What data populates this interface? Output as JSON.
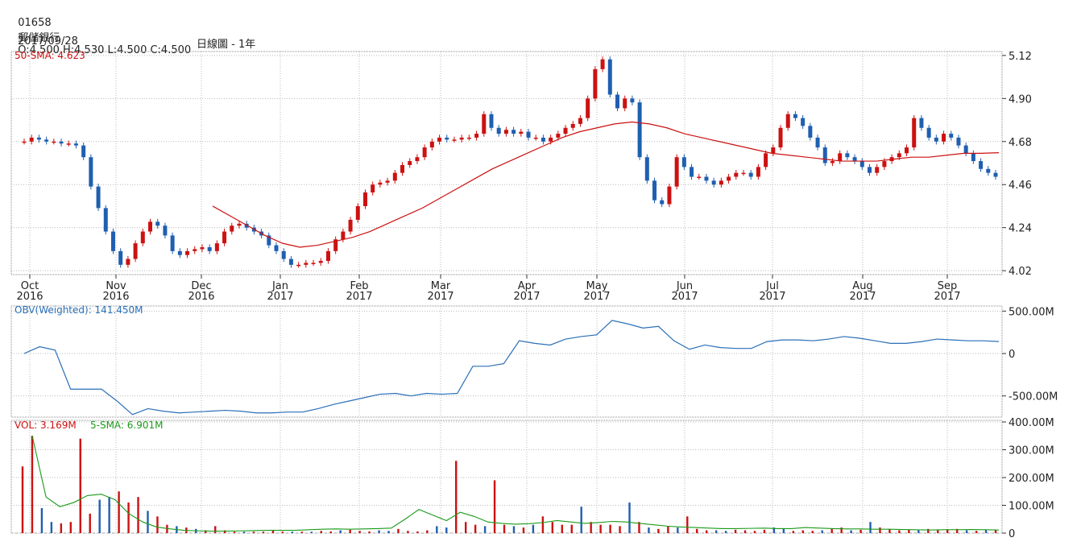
{
  "header": {
    "code": "01658",
    "name": "郵儲銀行",
    "quote": "O:4.500 H:4.530 L:4.500 C:4.500",
    "date": "2017/09/28",
    "period": "日線圖 - 1年"
  },
  "colors": {
    "up": "#cc1111",
    "down": "#1f5fb0",
    "obv": "#2a6fb8",
    "sma_vol": "#1a9a1a",
    "grid": "#bbbbbb"
  },
  "chart_data": [
    {
      "type": "candlestick",
      "label": "50-SMA: 4.623",
      "x_ticks": [
        {
          "m": "Oct",
          "y": "2016"
        },
        {
          "m": "Nov",
          "y": "2016"
        },
        {
          "m": "Dec",
          "y": "2016"
        },
        {
          "m": "Jan",
          "y": "2017"
        },
        {
          "m": "Feb",
          "y": "2017"
        },
        {
          "m": "Mar",
          "y": "2017"
        },
        {
          "m": "Apr",
          "y": "2017"
        },
        {
          "m": "May",
          "y": "2017"
        },
        {
          "m": "Jun",
          "y": "2017"
        },
        {
          "m": "Jul",
          "y": "2017"
        },
        {
          "m": "Aug",
          "y": "2017"
        },
        {
          "m": "Sep",
          "y": "2017"
        }
      ],
      "y_ticks": [
        "5.12",
        "4.90",
        "4.68",
        "4.46",
        "4.24",
        "4.02"
      ],
      "ylim": [
        4.0,
        5.14
      ],
      "close": [
        4.68,
        4.7,
        4.69,
        4.68,
        4.68,
        4.67,
        4.67,
        4.66,
        4.6,
        4.45,
        4.34,
        4.22,
        4.12,
        4.05,
        4.08,
        4.16,
        4.22,
        4.27,
        4.25,
        4.2,
        4.12,
        4.1,
        4.12,
        4.13,
        4.14,
        4.12,
        4.16,
        4.22,
        4.25,
        4.26,
        4.24,
        4.22,
        4.2,
        4.15,
        4.12,
        4.08,
        4.05,
        4.05,
        4.06,
        4.06,
        4.07,
        4.12,
        4.18,
        4.22,
        4.28,
        4.35,
        4.42,
        4.46,
        4.47,
        4.48,
        4.52,
        4.56,
        4.58,
        4.6,
        4.65,
        4.68,
        4.7,
        4.69,
        4.69,
        4.7,
        4.7,
        4.72,
        4.82,
        4.75,
        4.72,
        4.74,
        4.72,
        4.73,
        4.7,
        4.7,
        4.68,
        4.7,
        4.72,
        4.75,
        4.77,
        4.8,
        4.9,
        5.05,
        5.1,
        4.92,
        4.85,
        4.9,
        4.88,
        4.6,
        4.48,
        4.38,
        4.36,
        4.45,
        4.6,
        4.55,
        4.5,
        4.5,
        4.48,
        4.46,
        4.48,
        4.5,
        4.52,
        4.52,
        4.5,
        4.55,
        4.62,
        4.65,
        4.75,
        4.82,
        4.8,
        4.76,
        4.7,
        4.65,
        4.57,
        4.58,
        4.62,
        4.6,
        4.58,
        4.55,
        4.52,
        4.55,
        4.58,
        4.6,
        4.62,
        4.65,
        4.8,
        4.75,
        4.7,
        4.68,
        4.72,
        4.7,
        4.66,
        4.62,
        4.58,
        4.54,
        4.52,
        4.5
      ],
      "sma50": {
        "start": 50,
        "values": [
          4.35,
          4.3,
          4.25,
          4.2,
          4.16,
          4.14,
          4.15,
          4.17,
          4.19,
          4.22,
          4.26,
          4.3,
          4.34,
          4.39,
          4.44,
          4.49,
          4.54,
          4.58,
          4.62,
          4.66,
          4.7,
          4.73,
          4.75,
          4.77,
          4.78,
          4.77,
          4.75,
          4.72,
          4.7,
          4.68,
          4.66,
          4.64,
          4.62,
          4.61,
          4.6,
          4.59,
          4.58,
          4.58,
          4.58,
          4.59,
          4.6,
          4.6,
          4.61,
          4.62,
          4.62,
          4.623
        ]
      }
    },
    {
      "type": "line",
      "label": "OBV(Weighted): 141.450M",
      "y_ticks": [
        "500.00M",
        "0",
        "-500.00M"
      ],
      "ylim": [
        -750,
        560
      ],
      "values": [
        0,
        80,
        40,
        -420,
        -420,
        -420,
        -560,
        -720,
        -650,
        -680,
        -700,
        -690,
        -680,
        -670,
        -680,
        -700,
        -700,
        -690,
        -690,
        -650,
        -600,
        -560,
        -520,
        -480,
        -470,
        -500,
        -470,
        -480,
        -470,
        -150,
        -150,
        -120,
        150,
        120,
        100,
        170,
        200,
        220,
        390,
        350,
        300,
        320,
        150,
        50,
        100,
        70,
        60,
        60,
        140,
        160,
        160,
        150,
        170,
        200,
        180,
        150,
        120,
        120,
        140,
        170,
        160,
        150,
        150,
        141
      ]
    },
    {
      "type": "bar",
      "label": "VOL: 3.169M",
      "label2": "5-SMA: 6.901M",
      "y_ticks": [
        "400.00M",
        "300.00M",
        "200.00M",
        "100.00M",
        "0"
      ],
      "ylim": [
        0,
        400
      ],
      "values": [
        240,
        350,
        90,
        40,
        35,
        40,
        340,
        70,
        120,
        130,
        150,
        110,
        130,
        80,
        60,
        30,
        25,
        20,
        15,
        10,
        25,
        10,
        5,
        5,
        5,
        5,
        10,
        5,
        5,
        5,
        5,
        8,
        6,
        10,
        12,
        8,
        6,
        10,
        8,
        15,
        8,
        6,
        10,
        25,
        20,
        260,
        40,
        30,
        25,
        190,
        30,
        25,
        20,
        30,
        60,
        40,
        30,
        30,
        95,
        40,
        30,
        30,
        25,
        110,
        40,
        20,
        15,
        25,
        20,
        60,
        15,
        10,
        10,
        8,
        12,
        10,
        8,
        12,
        20,
        15,
        8,
        10,
        8,
        10,
        15,
        20,
        10,
        12,
        40,
        20,
        15,
        10,
        12,
        10,
        15,
        12,
        14,
        15,
        10,
        8,
        12,
        10
      ],
      "sma5": [
        350,
        130,
        95,
        110,
        135,
        140,
        120,
        70,
        40,
        22,
        15,
        10,
        8,
        7,
        7,
        8,
        9,
        10,
        10,
        10,
        12,
        14,
        15,
        14,
        15,
        16,
        18,
        50,
        85,
        65,
        45,
        75,
        60,
        40,
        35,
        32,
        34,
        38,
        45,
        40,
        35,
        38,
        42,
        40,
        35,
        30,
        25,
        22,
        20,
        18,
        16,
        16,
        17,
        18,
        16,
        16,
        20,
        18,
        16,
        15,
        15,
        14,
        14,
        13,
        12,
        11,
        12,
        12,
        13,
        12,
        11
      ]
    }
  ]
}
